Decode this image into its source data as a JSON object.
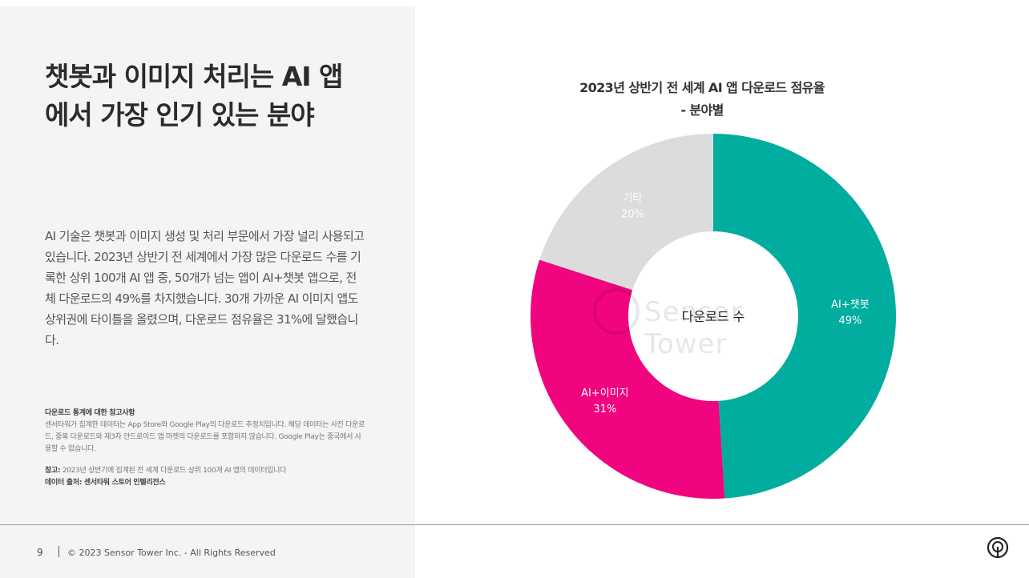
{
  "page": {
    "headline": "챗봇과 이미지 처리는 AI 앱\n에서 가장 인기 있는 분야",
    "body": "AI 기술은 챗봇과 이미지 생성 및 처리 부문에서 가장 널리 사용되고 있습니다. 2023년 상반기 전 세계에서 가장 많은 다운로드 수를 기록한 상위 100개 AI 앱 중, 50개가 넘는 앱이 AI+챗봇 앱으로, 전체 다운로드의 49%를 차지했습니다. 30개 가까운 AI 이미지 앱도 상위권에 타이틀을 올렸으며, 다운로드 점유율은 31%에 달했습니다.",
    "notes": {
      "heading": "다운로드 통계에 대한 참고사항",
      "text": "센서타워가 집계한 데이터는 App Store와 Google Play의 다운로드 추정치입니다. 해당 데이터는 사전 다운로드, 중복 다운로드와 제3자 안드로이드 앱 마켓의 다운로드를 포함하지 않습니다. Google Play는 중국에서 사용할 수 없습니다.",
      "ref_label": "참고:",
      "ref_text": " 2023년 상반기에 집계된 전 세계 다운로드 상위 100개 AI 앱의 데이터입니다",
      "source": "데이터 출처: 센서타워 스토어 인텔리전스"
    }
  },
  "footer": {
    "page_number": "9",
    "copyright": "© 2023 Sensor Tower Inc. - All Rights Reserved"
  },
  "watermark": {
    "text": "Sensor Tower"
  },
  "chart_data": {
    "type": "pie",
    "title": "2023년 상반기 전 세계 AI 앱 다운로드 점유율",
    "subtitle": "- 분야별",
    "center_label": "다운로드 수",
    "categories": [
      "AI+챗봇",
      "AI+이미지",
      "기타"
    ],
    "values": [
      49,
      31,
      20
    ],
    "value_labels": [
      "49%",
      "31%",
      "20%"
    ],
    "colors": [
      "#00ad9f",
      "#f0047f",
      "#dcdcdc"
    ],
    "label_colors": [
      "#ffffff",
      "#ffffff",
      "#ffffff"
    ],
    "start_angle": 0,
    "direction": "clockwise",
    "legend": "none"
  }
}
